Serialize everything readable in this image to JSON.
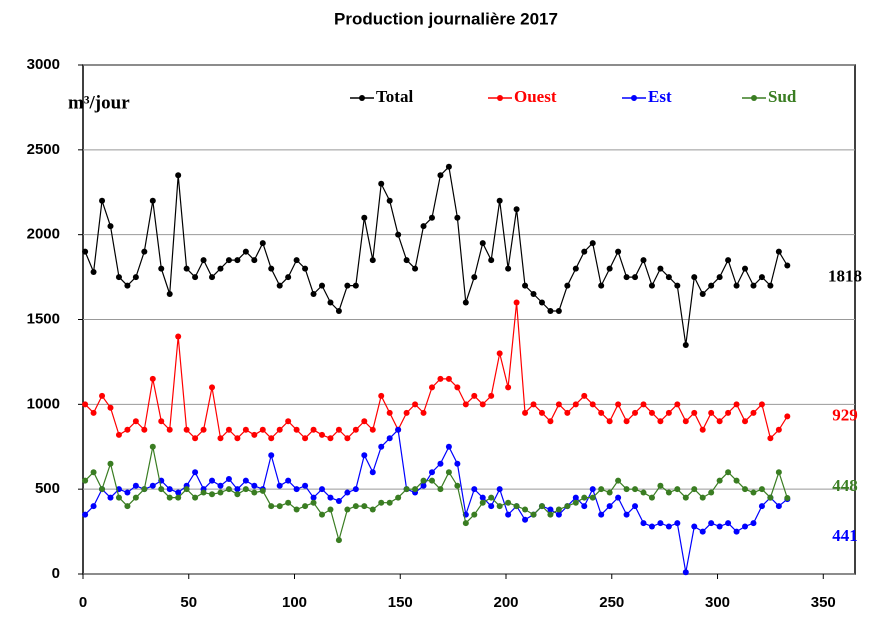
{
  "chart_data": {
    "type": "line",
    "title": "Production journalière 2017",
    "y_label": "m³/jour",
    "xlim": [
      0,
      365
    ],
    "xticks": [
      0,
      50,
      100,
      150,
      200,
      250,
      300,
      350
    ],
    "ylim": [
      0,
      3000
    ],
    "yticks": [
      0,
      500,
      1000,
      1500,
      2000,
      2500,
      3000
    ],
    "grid": true,
    "legend": "top",
    "x": [
      1,
      5,
      9,
      13,
      17,
      21,
      25,
      29,
      33,
      37,
      41,
      45,
      49,
      53,
      57,
      61,
      65,
      69,
      73,
      77,
      81,
      85,
      89,
      93,
      97,
      101,
      105,
      109,
      113,
      117,
      121,
      125,
      129,
      133,
      137,
      141,
      145,
      149,
      153,
      157,
      161,
      165,
      169,
      173,
      177,
      181,
      185,
      189,
      193,
      197,
      201,
      205,
      209,
      213,
      217,
      221,
      225,
      229,
      233,
      237,
      241,
      245,
      249,
      253,
      257,
      261,
      265,
      269,
      273,
      277,
      281,
      285,
      289,
      293,
      297,
      301,
      305,
      309,
      313,
      317,
      321,
      325,
      329,
      333
    ],
    "series": [
      {
        "name": "Total",
        "color": "#000000",
        "end_value": 1818,
        "values": [
          1900,
          1780,
          2200,
          2050,
          1750,
          1700,
          1750,
          1900,
          2200,
          1800,
          1650,
          2350,
          1800,
          1750,
          1850,
          1750,
          1800,
          1850,
          1850,
          1900,
          1850,
          1950,
          1800,
          1700,
          1750,
          1850,
          1800,
          1650,
          1700,
          1600,
          1550,
          1700,
          1700,
          2100,
          1850,
          2300,
          2200,
          2000,
          1850,
          1800,
          2050,
          2100,
          2350,
          2400,
          2100,
          1600,
          1750,
          1950,
          1850,
          2200,
          1800,
          2150,
          1700,
          1650,
          1600,
          1550,
          1550,
          1700,
          1800,
          1900,
          1950,
          1700,
          1800,
          1900,
          1750,
          1750,
          1850,
          1700,
          1800,
          1750,
          1700,
          1350,
          1750,
          1650,
          1700,
          1750,
          1850,
          1700,
          1800,
          1700,
          1750,
          1700,
          1900,
          1818
        ]
      },
      {
        "name": "Ouest",
        "color": "#ff0000",
        "end_value": 929,
        "values": [
          1000,
          950,
          1050,
          980,
          820,
          850,
          900,
          850,
          1150,
          900,
          850,
          1400,
          850,
          800,
          850,
          1100,
          800,
          850,
          800,
          850,
          820,
          850,
          800,
          850,
          900,
          850,
          800,
          850,
          820,
          800,
          850,
          800,
          850,
          900,
          850,
          1050,
          950,
          850,
          950,
          1000,
          950,
          1100,
          1150,
          1150,
          1100,
          1000,
          1050,
          1000,
          1050,
          1300,
          1100,
          1600,
          950,
          1000,
          950,
          900,
          1000,
          950,
          1000,
          1050,
          1000,
          950,
          900,
          1000,
          900,
          950,
          1000,
          950,
          900,
          950,
          1000,
          900,
          950,
          850,
          950,
          900,
          950,
          1000,
          900,
          950,
          1000,
          800,
          850,
          929
        ]
      },
      {
        "name": "Est",
        "color": "#0000ff",
        "end_value": 441,
        "values": [
          350,
          400,
          500,
          450,
          500,
          480,
          520,
          500,
          520,
          550,
          500,
          480,
          520,
          600,
          500,
          550,
          520,
          560,
          500,
          550,
          520,
          500,
          700,
          520,
          550,
          500,
          520,
          450,
          500,
          450,
          430,
          480,
          500,
          700,
          600,
          750,
          800,
          850,
          500,
          480,
          520,
          600,
          650,
          750,
          650,
          350,
          500,
          450,
          400,
          500,
          350,
          400,
          320,
          350,
          400,
          380,
          350,
          400,
          450,
          400,
          500,
          350,
          400,
          450,
          350,
          400,
          300,
          280,
          300,
          280,
          300,
          10,
          280,
          250,
          300,
          280,
          300,
          250,
          280,
          300,
          400,
          450,
          400,
          441
        ]
      },
      {
        "name": "Sud",
        "color": "#3a7d22",
        "end_value": 448,
        "values": [
          550,
          600,
          500,
          650,
          450,
          400,
          450,
          500,
          750,
          500,
          450,
          450,
          500,
          450,
          480,
          470,
          480,
          500,
          470,
          500,
          480,
          490,
          400,
          400,
          420,
          380,
          400,
          420,
          350,
          380,
          200,
          380,
          400,
          400,
          380,
          420,
          420,
          450,
          500,
          500,
          550,
          550,
          500,
          600,
          520,
          300,
          350,
          420,
          450,
          400,
          420,
          400,
          380,
          350,
          400,
          350,
          380,
          400,
          420,
          450,
          450,
          500,
          480,
          550,
          500,
          500,
          480,
          450,
          520,
          480,
          500,
          450,
          500,
          450,
          480,
          550,
          600,
          550,
          500,
          480,
          500,
          450,
          600,
          448
        ]
      }
    ]
  }
}
